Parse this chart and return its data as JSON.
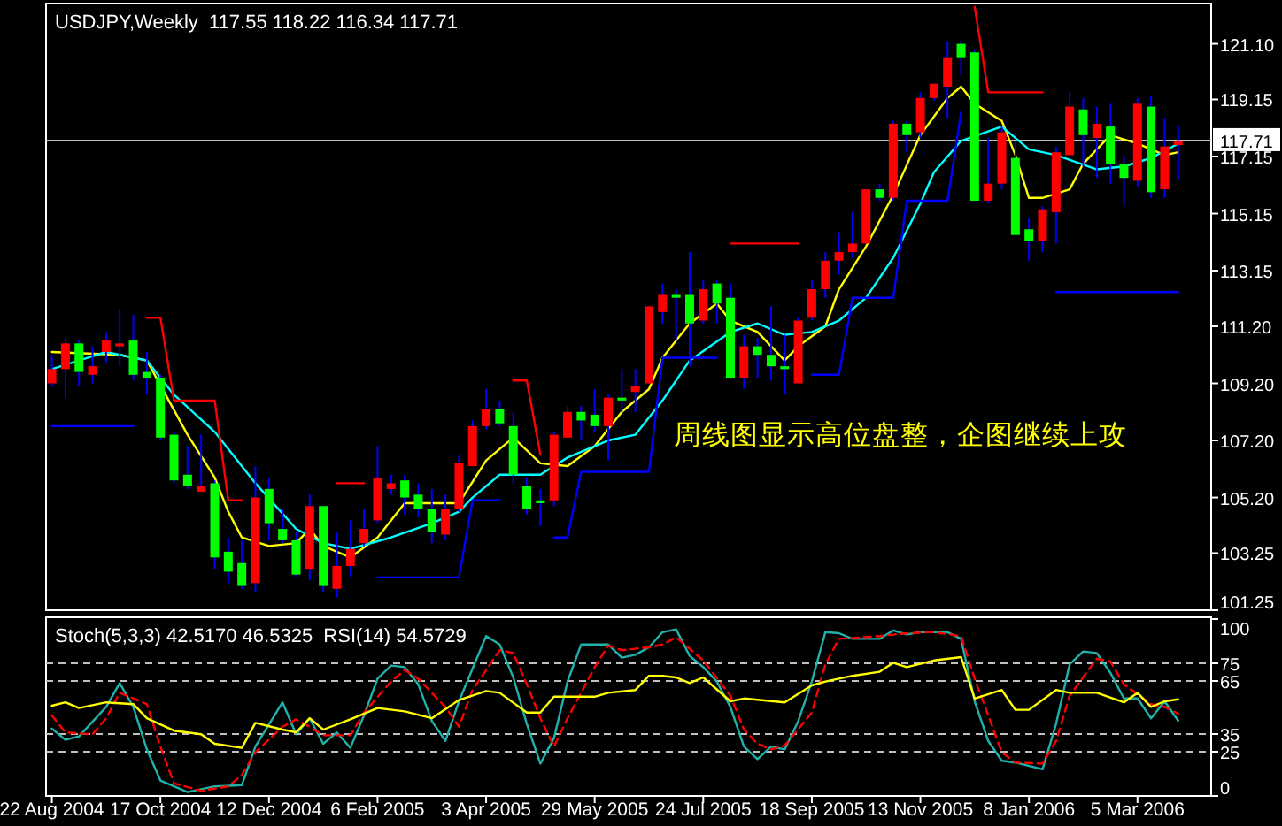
{
  "chart_data": [
    {
      "type": "candlestick",
      "title": "USDJPY,Weekly  117.55 118.22 116.34 117.71",
      "tick_labels": "y",
      "annotations": [
        "周线图显示高位盘整，企图继续上攻"
      ],
      "color": "#0000ff",
      "colors": [
        "#ff0000",
        "#ff0000",
        "#00ff00",
        "#ff0000",
        "#ff0000",
        "#ff0000",
        "#00ff00",
        "#00ff00",
        "#00ff00",
        "#00ff00",
        "#00ff00",
        "#ff0000",
        "#00ff00",
        "#00ff00",
        "#00ff00",
        "#ff0000",
        "#00ff00",
        "#00ff00",
        "#00ff00",
        "#ff0000",
        "#00ff00",
        "#ff0000",
        "#ff0000",
        "#ff0000",
        "#ff0000",
        "#ff0000",
        "#00ff00",
        "#00ff00",
        "#00ff00",
        "#ff0000",
        "#ff0000",
        "#ff0000",
        "#ff0000",
        "#00ff00",
        "#00ff00",
        "#00ff00",
        "#00ff00",
        "#ff0000",
        "#ff0000",
        "#00ff00",
        "#00ff00",
        "#ff0000",
        "#00ff00",
        "#ff0000",
        "#ff0000",
        "#ff0000",
        "#00ff00",
        "#00ff00",
        "#ff0000",
        "#00ff00",
        "#00ff00",
        "#ff0000",
        "#00ff00",
        "#00ff00",
        "#00ff00",
        "#ff0000",
        "#ff0000",
        "#ff0000",
        "#ff0000",
        "#ff0000",
        "#ff0000",
        "#00ff00",
        "#ff0000",
        "#00ff00",
        "#ff0000",
        "#ff0000",
        "#ff0000",
        "#00ff00",
        "#00ff00",
        "#ff0000",
        "#ff0000",
        "#00ff00",
        "#00ff00",
        "#ff0000",
        "#ff0000",
        "#ff0000",
        "#00ff00",
        "#ff0000",
        "#00ff00",
        "#00ff00",
        "#ff0000",
        "#00ff00",
        "#ff0000",
        "#ff0000"
      ],
      "xlim": [
        "2004-08-19",
        "2006-04-12"
      ],
      "ylim": [
        101.25,
        122.45
      ],
      "yticks": [
        {
          "value": 121.1,
          "label": "121.10"
        },
        119.15,
        117.15,
        115.15,
        113.15,
        {
          "value": 111.2,
          "label": "111.20"
        },
        {
          "value": 109.2,
          "label": "109.20"
        },
        {
          "value": 107.2,
          "label": "107.20"
        },
        {
          "value": 105.2,
          "label": "105.20"
        },
        103.25,
        101.25
      ],
      "ref_lines": [
        {
          "axis": "y",
          "value": 117.71,
          "label": "117.71",
          "color": "#c0c0c0"
        }
      ],
      "x": [
        "2004-08-22",
        "2004-08-29",
        "2004-09-05",
        "2004-09-12",
        "2004-09-19",
        "2004-09-26",
        "2004-10-03",
        "2004-10-10",
        "2004-10-17",
        "2004-10-24",
        "2004-10-31",
        "2004-11-07",
        "2004-11-14",
        "2004-11-21",
        "2004-11-28",
        "2004-12-05",
        "2004-12-12",
        "2004-12-19",
        "2004-12-26",
        "2005-01-02",
        "2005-01-09",
        "2005-01-16",
        "2005-01-23",
        "2005-01-30",
        "2005-02-06",
        "2005-02-13",
        "2005-02-20",
        "2005-02-27",
        "2005-03-06",
        "2005-03-13",
        "2005-03-20",
        "2005-03-27",
        "2005-04-03",
        "2005-04-10",
        "2005-04-17",
        "2005-04-24",
        "2005-05-01",
        "2005-05-08",
        "2005-05-15",
        "2005-05-22",
        "2005-05-29",
        "2005-06-05",
        "2005-06-12",
        "2005-06-19",
        "2005-06-26",
        "2005-07-03",
        "2005-07-10",
        "2005-07-17",
        "2005-07-24",
        "2005-07-31",
        "2005-08-07",
        "2005-08-14",
        "2005-08-21",
        "2005-08-28",
        "2005-09-04",
        "2005-09-11",
        "2005-09-18",
        "2005-09-25",
        "2005-10-02",
        "2005-10-09",
        "2005-10-16",
        "2005-10-23",
        "2005-10-30",
        "2005-11-06",
        "2005-11-13",
        "2005-11-20",
        "2005-11-27",
        "2005-12-04",
        "2005-12-11",
        "2005-12-18",
        "2005-12-25",
        "2006-01-01",
        "2006-01-08",
        "2006-01-15",
        "2006-01-22",
        "2006-01-29",
        "2006-02-05",
        "2006-02-12",
        "2006-02-19",
        "2006-02-26",
        "2006-03-05",
        "2006-03-12",
        "2006-03-19",
        "2006-03-26"
      ],
      "ohlc": [
        [
          109.2,
          110.2,
          109.1,
          109.7
        ],
        [
          109.7,
          110.8,
          108.7,
          110.6
        ],
        [
          110.6,
          110.7,
          109.1,
          109.6
        ],
        [
          109.5,
          110.5,
          109.2,
          109.8
        ],
        [
          110.3,
          111.0,
          109.9,
          110.7
        ],
        [
          110.5,
          111.8,
          109.8,
          110.6
        ],
        [
          110.7,
          111.6,
          109.3,
          109.5
        ],
        [
          109.6,
          110.3,
          108.8,
          109.4
        ],
        [
          109.4,
          109.5,
          107.2,
          107.3
        ],
        [
          107.4,
          107.5,
          105.7,
          105.8
        ],
        [
          106.0,
          107.0,
          105.5,
          105.6
        ],
        [
          105.4,
          107.4,
          105.4,
          105.6
        ],
        [
          105.7,
          105.8,
          102.7,
          103.1
        ],
        [
          103.3,
          103.8,
          102.2,
          102.6
        ],
        [
          102.9,
          103.7,
          102.0,
          102.1
        ],
        [
          102.2,
          106.3,
          101.9,
          105.2
        ],
        [
          105.5,
          105.9,
          103.7,
          104.3
        ],
        [
          104.1,
          104.8,
          103.6,
          103.7
        ],
        [
          103.7,
          104.0,
          102.4,
          102.5
        ],
        [
          102.7,
          105.3,
          102.3,
          104.9
        ],
        [
          104.9,
          104.9,
          101.9,
          102.1
        ],
        [
          102.0,
          104.0,
          101.7,
          102.8
        ],
        [
          102.8,
          104.4,
          102.4,
          103.4
        ],
        [
          103.6,
          104.8,
          103.5,
          104.1
        ],
        [
          104.4,
          107.0,
          104.3,
          105.9
        ],
        [
          105.5,
          106.0,
          105.3,
          105.7
        ],
        [
          105.8,
          106.0,
          104.6,
          105.2
        ],
        [
          105.3,
          105.7,
          104.5,
          104.8
        ],
        [
          104.8,
          105.5,
          103.6,
          104.0
        ],
        [
          103.9,
          105.3,
          103.7,
          104.8
        ],
        [
          104.8,
          106.7,
          104.7,
          106.4
        ],
        [
          106.3,
          107.9,
          106.3,
          107.7
        ],
        [
          107.7,
          109.0,
          107.6,
          108.3
        ],
        [
          108.3,
          108.6,
          107.7,
          107.8
        ],
        [
          107.7,
          108.2,
          105.7,
          106.0
        ],
        [
          105.6,
          105.9,
          104.6,
          104.8
        ],
        [
          105.1,
          105.5,
          104.2,
          105.0
        ],
        [
          105.1,
          107.5,
          104.9,
          107.4
        ],
        [
          107.3,
          108.4,
          107.3,
          108.2
        ],
        [
          108.2,
          108.4,
          107.2,
          107.9
        ],
        [
          108.1,
          109.0,
          107.5,
          107.7
        ],
        [
          107.7,
          108.8,
          106.5,
          108.7
        ],
        [
          108.7,
          109.7,
          108.2,
          108.6
        ],
        [
          108.9,
          109.7,
          108.2,
          109.1
        ],
        [
          109.2,
          111.9,
          109.2,
          111.9
        ],
        [
          111.7,
          112.7,
          111.3,
          112.3
        ],
        [
          112.3,
          112.5,
          110.7,
          112.2
        ],
        [
          112.3,
          113.8,
          109.8,
          111.3
        ],
        [
          111.4,
          112.8,
          111.3,
          112.5
        ],
        [
          112.7,
          112.8,
          111.3,
          112.0
        ],
        [
          112.2,
          112.7,
          109.4,
          109.4
        ],
        [
          109.4,
          110.9,
          109.0,
          110.5
        ],
        [
          110.5,
          110.8,
          109.4,
          110.2
        ],
        [
          110.2,
          111.9,
          109.3,
          109.8
        ],
        [
          109.8,
          110.9,
          108.8,
          109.7
        ],
        [
          109.2,
          111.5,
          109.2,
          111.4
        ],
        [
          111.5,
          112.8,
          111.4,
          112.5
        ],
        [
          112.5,
          113.8,
          112.2,
          113.5
        ],
        [
          113.5,
          114.5,
          113.0,
          113.8
        ],
        [
          113.8,
          115.2,
          113.6,
          114.1
        ],
        [
          114.1,
          116.0,
          114.1,
          116.0
        ],
        [
          116.0,
          116.2,
          115.6,
          115.7
        ],
        [
          115.7,
          118.4,
          115.6,
          118.3
        ],
        [
          118.3,
          118.4,
          117.3,
          117.9
        ],
        [
          118.0,
          119.4,
          117.8,
          119.2
        ],
        [
          119.2,
          119.7,
          119.1,
          119.7
        ],
        [
          119.6,
          121.2,
          118.5,
          120.6
        ],
        [
          121.1,
          121.2,
          120.0,
          120.6
        ],
        [
          120.8,
          120.9,
          115.6,
          115.6
        ],
        [
          115.6,
          117.8,
          115.5,
          116.2
        ],
        [
          116.2,
          118.2,
          116.0,
          118.0
        ],
        [
          117.1,
          117.7,
          114.4,
          114.4
        ],
        [
          114.6,
          115.0,
          113.5,
          114.2
        ],
        [
          114.2,
          115.4,
          113.8,
          115.3
        ],
        [
          115.2,
          117.5,
          114.1,
          117.3
        ],
        [
          117.2,
          119.4,
          117.2,
          118.9
        ],
        [
          118.8,
          119.2,
          116.8,
          117.9
        ],
        [
          117.8,
          118.9,
          116.4,
          118.3
        ],
        [
          118.2,
          119.0,
          116.2,
          116.9
        ],
        [
          116.9,
          117.2,
          115.4,
          116.4
        ],
        [
          116.3,
          119.2,
          116.1,
          119.0
        ],
        [
          118.9,
          119.3,
          115.7,
          115.9
        ],
        [
          116.0,
          118.5,
          115.7,
          117.5
        ],
        [
          117.55,
          118.22,
          116.34,
          117.71
        ]
      ],
      "series": [
        {
          "type": "line",
          "color": "#ffff00",
          "x": [
            "2004-08-22",
            "2004-09-26",
            "2004-10-10",
            "2004-10-31",
            "2004-11-14",
            "2004-11-21",
            "2004-11-28",
            "2004-12-12",
            "2004-12-26",
            "2005-01-02",
            "2005-01-09",
            "2005-01-23",
            "2005-02-06",
            "2005-02-20",
            "2005-03-20",
            "2005-04-03",
            "2005-04-17",
            "2005-05-01",
            "2005-05-15",
            "2005-05-29",
            "2005-06-12",
            "2005-06-26",
            "2005-07-03",
            "2005-07-17",
            "2005-07-31",
            "2005-08-07",
            "2005-08-21",
            "2005-09-04",
            "2005-09-11",
            "2005-09-25",
            "2005-10-02",
            "2005-10-16",
            "2005-10-30",
            "2005-11-13",
            "2005-11-27",
            "2005-12-04",
            "2005-12-11",
            "2005-12-25",
            "2006-01-01",
            "2006-01-08",
            "2006-01-15",
            "2006-01-29",
            "2006-02-05",
            "2006-02-19",
            "2006-03-05",
            "2006-03-19",
            "2006-03-26"
          ],
          "values": [
            110.3,
            110.2,
            110.0,
            107.4,
            105.9,
            104.7,
            103.8,
            103.5,
            103.6,
            104.1,
            103.5,
            103.1,
            103.8,
            105.0,
            105.0,
            106.5,
            107.3,
            106.4,
            106.3,
            107.0,
            108.2,
            109.0,
            110.1,
            111.3,
            112.0,
            111.4,
            111.0,
            110.0,
            110.5,
            111.2,
            112.5,
            114.0,
            115.8,
            117.9,
            119.2,
            119.6,
            119.0,
            118.4,
            117.2,
            115.7,
            115.7,
            116.0,
            116.9,
            117.9,
            117.6,
            117.2,
            117.3
          ]
        },
        {
          "type": "line",
          "color": "#00ffff",
          "x": [
            "2004-08-22",
            "2004-09-05",
            "2004-09-19",
            "2004-10-10",
            "2004-10-24",
            "2004-11-14",
            "2004-12-05",
            "2004-12-26",
            "2005-01-09",
            "2005-01-23",
            "2005-02-13",
            "2005-03-06",
            "2005-03-20",
            "2005-03-27",
            "2005-04-10",
            "2005-05-01",
            "2005-05-15",
            "2005-06-05",
            "2005-06-19",
            "2005-07-03",
            "2005-07-17",
            "2005-08-07",
            "2005-08-21",
            "2005-09-04",
            "2005-09-18",
            "2005-10-02",
            "2005-10-16",
            "2005-10-30",
            "2005-11-13",
            "2005-11-20",
            "2005-12-04",
            "2005-12-25",
            "2006-01-08",
            "2006-01-22",
            "2006-02-12",
            "2006-02-26",
            "2006-03-12",
            "2006-03-26"
          ],
          "values": [
            109.7,
            110.0,
            110.3,
            110.0,
            108.8,
            107.5,
            105.7,
            104.1,
            103.6,
            103.4,
            103.8,
            104.3,
            104.7,
            105.2,
            106.0,
            106.0,
            106.6,
            107.2,
            107.4,
            108.6,
            110.0,
            111.0,
            111.3,
            110.9,
            111.0,
            111.4,
            112.2,
            113.6,
            115.5,
            116.6,
            117.7,
            118.2,
            117.4,
            117.2,
            116.7,
            116.8,
            117.1,
            117.6
          ]
        },
        {
          "type": "line",
          "color": "#ff0000",
          "x": [
            "2004-10-10",
            "2004-10-17",
            "2004-10-24",
            "2004-11-14",
            "2004-11-21",
            "2004-11-28",
            "2004-12-05",
            "2005-01-16",
            "2005-01-30",
            "2005-02-06",
            "2005-04-17",
            "2005-04-24",
            "2005-05-01",
            "2005-05-08",
            "2005-08-07",
            "2005-09-11",
            "2005-09-18",
            "2005-12-11",
            "2005-12-18",
            "2006-01-15"
          ],
          "values": [
            111.5,
            111.5,
            108.6,
            108.6,
            105.1,
            105.1,
            null,
            105.7,
            105.7,
            null,
            109.3,
            109.3,
            106.7,
            null,
            114.1,
            114.1,
            null,
            122.4,
            119.4,
            119.4
          ]
        },
        {
          "type": "line",
          "color": "#0000ff",
          "x": [
            "2004-08-22",
            "2004-10-03",
            "2004-10-10",
            "2005-02-06",
            "2005-03-20",
            "2005-03-27",
            "2005-04-10",
            "2005-04-17",
            "2005-05-08",
            "2005-05-15",
            "2005-05-22",
            "2005-06-26",
            "2005-07-03",
            "2005-07-31",
            "2005-08-07",
            "2005-09-18",
            "2005-10-02",
            "2005-10-09",
            "2005-10-30",
            "2005-11-06",
            "2005-11-27",
            "2005-12-04",
            "2005-12-11",
            "2006-01-22",
            "2006-03-26"
          ],
          "values": [
            107.7,
            107.7,
            null,
            102.4,
            102.4,
            105.1,
            105.1,
            null,
            103.8,
            103.8,
            106.1,
            106.1,
            110.1,
            110.1,
            null,
            109.5,
            109.5,
            112.2,
            112.2,
            115.6,
            115.6,
            118.7,
            null,
            112.4,
            112.4
          ]
        }
      ]
    },
    {
      "type": "line",
      "title": "Stoch(5,3,3) 42.5170 46.5325  RSI(14) 54.5729",
      "xlim": [
        "2004-08-19",
        "2006-04-12"
      ],
      "xticks": [
        {
          "value": "2004-08-22",
          "label": "22 Aug 2004"
        },
        {
          "value": "2004-10-17",
          "label": "17 Oct 2004"
        },
        {
          "value": "2004-12-12",
          "label": "12 Dec 2004"
        },
        {
          "value": "2005-02-06",
          "label": "6 Feb 2005"
        },
        {
          "value": "2005-04-03",
          "label": "3 Apr 2005"
        },
        {
          "value": "2005-05-29",
          "label": "29 May 2005"
        },
        {
          "value": "2005-07-24",
          "label": "24 Jul 2005"
        },
        {
          "value": "2005-09-18",
          "label": "18 Sep 2005"
        },
        {
          "value": "2005-11-13",
          "label": "13 Nov 2005"
        },
        {
          "value": "2006-01-08",
          "label": "8 Jan 2006"
        },
        {
          "value": "2006-03-05",
          "label": "5 Mar 2006"
        }
      ],
      "ylim": [
        0,
        100
      ],
      "yticks": [
        0,
        25,
        35,
        65,
        75,
        100
      ],
      "ref_lines": [
        {
          "axis": "y",
          "value": 25,
          "color": "#c0c0c0",
          "line_style": "dashed"
        },
        {
          "axis": "y",
          "value": 35,
          "color": "#c0c0c0",
          "line_style": "dashed"
        },
        {
          "axis": "y",
          "value": 65,
          "color": "#c0c0c0",
          "line_style": "dashed"
        },
        {
          "axis": "y",
          "value": 75,
          "color": "#c0c0c0",
          "line_style": "dashed"
        }
      ],
      "series": [
        {
          "color": "#20b2aa",
          "x": [
            "2004-08-22",
            "2004-08-29",
            "2004-09-05",
            "2004-09-19",
            "2004-09-26",
            "2004-10-03",
            "2004-10-10",
            "2004-10-17",
            "2004-10-31",
            "2004-11-14",
            "2004-11-28",
            "2004-12-05",
            "2004-12-19",
            "2004-12-26",
            "2005-01-02",
            "2005-01-09",
            "2005-01-16",
            "2005-01-23",
            "2005-01-30",
            "2005-02-06",
            "2005-02-13",
            "2005-02-20",
            "2005-02-27",
            "2005-03-06",
            "2005-03-13",
            "2005-03-20",
            "2005-04-03",
            "2005-04-10",
            "2005-04-17",
            "2005-04-24",
            "2005-05-01",
            "2005-05-08",
            "2005-05-15",
            "2005-05-22",
            "2005-06-05",
            "2005-06-12",
            "2005-06-19",
            "2005-06-26",
            "2005-07-03",
            "2005-07-10",
            "2005-07-17",
            "2005-07-24",
            "2005-07-31",
            "2005-08-07",
            "2005-08-14",
            "2005-08-21",
            "2005-08-28",
            "2005-09-04",
            "2005-09-11",
            "2005-09-18",
            "2005-09-25",
            "2005-10-02",
            "2005-10-09",
            "2005-10-23",
            "2005-10-30",
            "2005-11-06",
            "2005-11-13",
            "2005-11-27",
            "2005-12-04",
            "2005-12-11",
            "2005-12-18",
            "2005-12-25",
            "2006-01-01",
            "2006-01-15",
            "2006-01-22",
            "2006-01-29",
            "2006-02-05",
            "2006-02-12",
            "2006-02-19",
            "2006-02-26",
            "2006-03-05",
            "2006-03-12",
            "2006-03-19",
            "2006-03-26"
          ],
          "values": [
            38.1,
            31.7,
            33.7,
            50.3,
            63.8,
            50.3,
            26.3,
            8.7,
            2.2,
            5.4,
            6.1,
            27.9,
            52.9,
            34.9,
            43.9,
            29.5,
            35.9,
            27.2,
            45.5,
            66.3,
            73.7,
            72.8,
            63.1,
            42.3,
            31.1,
            53.5,
            90.4,
            85.6,
            67.0,
            40.7,
            18.3,
            32.7,
            64.7,
            85.6,
            85.6,
            78.2,
            79.8,
            84.0,
            92.6,
            94.2,
            79.2,
            72.8,
            64.7,
            50.3,
            27.9,
            20.8,
            27.9,
            26.3,
            42.3,
            64.7,
            92.6,
            92.0,
            88.8,
            88.8,
            93.6,
            91.3,
            92.6,
            92.6,
            88.8,
            53.5,
            31.1,
            19.9,
            18.9,
            15.1,
            40.7,
            74.4,
            81.7,
            80.8,
            69.6,
            55.1,
            55.1,
            43.9,
            53.5,
            42.5
          ]
        },
        {
          "color": "#ff0000",
          "line_style": "dashed",
          "x": [
            "2004-08-22",
            "2004-08-29",
            "2004-09-12",
            "2004-09-19",
            "2004-09-26",
            "2004-10-10",
            "2004-10-17",
            "2004-10-24",
            "2004-11-07",
            "2004-11-21",
            "2004-11-28",
            "2004-12-05",
            "2004-12-19",
            "2004-12-26",
            "2005-01-02",
            "2005-01-09",
            "2005-01-23",
            "2005-01-30",
            "2005-02-13",
            "2005-02-20",
            "2005-02-27",
            "2005-03-13",
            "2005-03-20",
            "2005-03-27",
            "2005-04-10",
            "2005-04-17",
            "2005-04-24",
            "2005-05-01",
            "2005-05-08",
            "2005-05-15",
            "2005-05-29",
            "2005-06-05",
            "2005-06-12",
            "2005-06-26",
            "2005-07-03",
            "2005-07-10",
            "2005-07-24",
            "2005-08-07",
            "2005-08-14",
            "2005-08-21",
            "2005-08-28",
            "2005-09-04",
            "2005-09-18",
            "2005-09-25",
            "2005-10-02",
            "2005-10-23",
            "2005-11-06",
            "2005-11-20",
            "2005-12-04",
            "2005-12-11",
            "2005-12-18",
            "2005-12-25",
            "2006-01-01",
            "2006-01-15",
            "2006-01-22",
            "2006-01-29",
            "2006-02-12",
            "2006-02-19",
            "2006-02-26",
            "2006-03-12",
            "2006-03-19",
            "2006-03-26"
          ],
          "values": [
            45.5,
            35.9,
            34.9,
            43.9,
            58.3,
            51.9,
            27.9,
            7.1,
            2.9,
            5.4,
            11.9,
            24.7,
            39.1,
            43.3,
            39.1,
            34.3,
            34.3,
            47.1,
            64.7,
            71.2,
            66.3,
            50.3,
            39.1,
            59.9,
            82.4,
            80.8,
            63.1,
            43.9,
            27.9,
            43.9,
            72.8,
            84.9,
            82.4,
            84.0,
            85.6,
            89.7,
            76.6,
            56.7,
            37.5,
            29.5,
            26.3,
            28.5,
            47.1,
            74.4,
            88.8,
            90.4,
            92.0,
            92.6,
            90.4,
            66.3,
            45.5,
            24.7,
            18.9,
            18.3,
            31.1,
            56.7,
            77.6,
            76.0,
            63.1,
            51.9,
            50.3,
            46.5
          ]
        },
        {
          "color": "#ffff00",
          "x": [
            "2004-08-22",
            "2004-08-29",
            "2004-09-05",
            "2004-09-19",
            "2004-10-03",
            "2004-10-10",
            "2004-10-24",
            "2004-11-07",
            "2004-11-14",
            "2004-11-28",
            "2004-12-05",
            "2004-12-19",
            "2004-12-26",
            "2005-01-02",
            "2005-01-09",
            "2005-01-23",
            "2005-02-06",
            "2005-02-20",
            "2005-03-06",
            "2005-03-20",
            "2005-04-03",
            "2005-04-10",
            "2005-04-24",
            "2005-05-01",
            "2005-05-08",
            "2005-05-29",
            "2005-06-05",
            "2005-06-19",
            "2005-06-26",
            "2005-07-03",
            "2005-07-10",
            "2005-07-17",
            "2005-07-24",
            "2005-08-07",
            "2005-08-14",
            "2005-09-04",
            "2005-09-18",
            "2005-09-25",
            "2005-10-09",
            "2005-10-23",
            "2005-10-30",
            "2005-11-06",
            "2005-11-20",
            "2005-12-04",
            "2005-12-11",
            "2005-12-25",
            "2006-01-01",
            "2006-01-08",
            "2006-01-22",
            "2006-01-29",
            "2006-02-12",
            "2006-02-26",
            "2006-03-05",
            "2006-03-12",
            "2006-03-19",
            "2006-03-26"
          ],
          "values": [
            51.0,
            52.9,
            49.7,
            52.9,
            51.9,
            43.9,
            36.9,
            34.9,
            29.5,
            27.2,
            41.3,
            37.5,
            35.9,
            43.9,
            37.5,
            43.3,
            49.7,
            47.8,
            43.9,
            54.2,
            59.3,
            58.3,
            47.1,
            47.1,
            56.1,
            56.1,
            58.3,
            59.9,
            67.9,
            67.9,
            67.0,
            63.8,
            67.0,
            53.5,
            55.1,
            52.9,
            62.5,
            64.7,
            67.9,
            70.2,
            75.3,
            72.8,
            76.6,
            78.5,
            55.1,
            59.9,
            48.7,
            48.7,
            59.9,
            58.3,
            58.3,
            52.9,
            58.3,
            50.3,
            53.5,
            54.6
          ]
        }
      ]
    }
  ]
}
